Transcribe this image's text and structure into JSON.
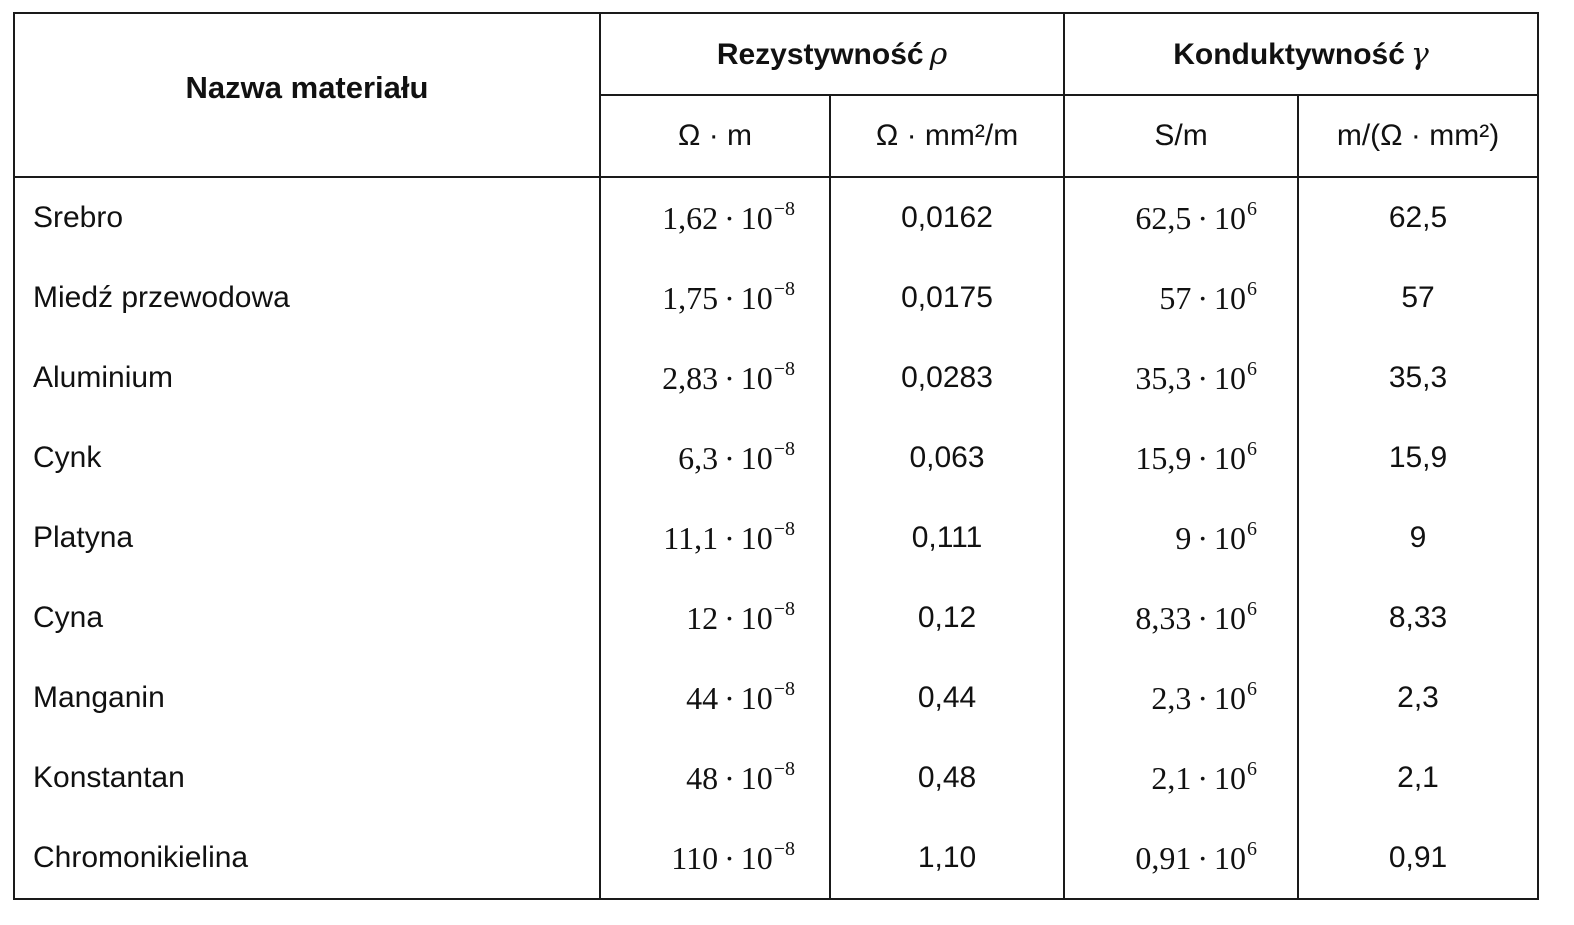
{
  "header": {
    "name_col": "Nazwa materiału",
    "resistivity": {
      "label": "Rezystywność",
      "symbol": "ρ"
    },
    "conductivity": {
      "label": "Konduktywność",
      "symbol": "γ"
    },
    "units": {
      "res_si": "Ω · m",
      "res_practical": "Ω · mm²/m",
      "cond_si": "S/m",
      "cond_practical": "m/(Ω · mm²)"
    }
  },
  "rows": [
    {
      "name": "Srebro",
      "res_si_mant": "1,62",
      "res_si_exp": "−8",
      "res_practical": "0,0162",
      "cond_si_mant": "62,5",
      "cond_si_exp": "6",
      "cond_practical": "62,5"
    },
    {
      "name": "Miedź przewodowa",
      "res_si_mant": "1,75",
      "res_si_exp": "−8",
      "res_practical": "0,0175",
      "cond_si_mant": "57",
      "cond_si_exp": "6",
      "cond_practical": "57"
    },
    {
      "name": "Aluminium",
      "res_si_mant": "2,83",
      "res_si_exp": "−8",
      "res_practical": "0,0283",
      "cond_si_mant": "35,3",
      "cond_si_exp": "6",
      "cond_practical": "35,3"
    },
    {
      "name": "Cynk",
      "res_si_mant": "6,3",
      "res_si_exp": "−8",
      "res_practical": "0,063",
      "cond_si_mant": "15,9",
      "cond_si_exp": "6",
      "cond_practical": "15,9"
    },
    {
      "name": "Platyna",
      "res_si_mant": "11,1",
      "res_si_exp": "−8",
      "res_practical": "0,111",
      "cond_si_mant": "9",
      "cond_si_exp": "6",
      "cond_practical": "9"
    },
    {
      "name": "Cyna",
      "res_si_mant": "12",
      "res_si_exp": "−8",
      "res_practical": "0,12",
      "cond_si_mant": "8,33",
      "cond_si_exp": "6",
      "cond_practical": "8,33"
    },
    {
      "name": "Manganin",
      "res_si_mant": "44",
      "res_si_exp": "−8",
      "res_practical": "0,44",
      "cond_si_mant": "2,3",
      "cond_si_exp": "6",
      "cond_practical": "2,3"
    },
    {
      "name": "Konstantan",
      "res_si_mant": "48",
      "res_si_exp": "−8",
      "res_practical": "0,48",
      "cond_si_mant": "2,1",
      "cond_si_exp": "6",
      "cond_practical": "2,1"
    },
    {
      "name": "Chromonikielina",
      "res_si_mant": "110",
      "res_si_exp": "−8",
      "res_practical": "1,10",
      "cond_si_mant": "0,91",
      "cond_si_exp": "6",
      "cond_practical": "0,91"
    }
  ],
  "pow_base": "10",
  "mult_sign": "·"
}
